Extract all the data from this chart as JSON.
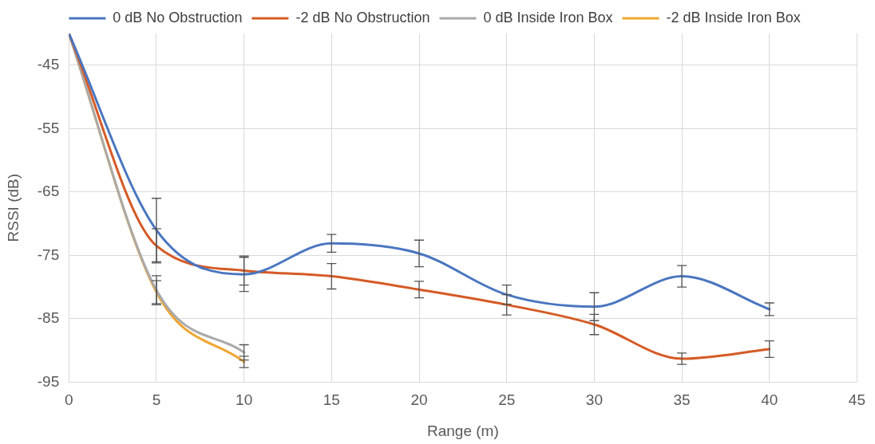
{
  "chart_data": {
    "type": "line",
    "xlabel": "Range (m)",
    "ylabel": "RSSI (dB)",
    "xlim": [
      0,
      45
    ],
    "xticks": [
      0,
      5,
      10,
      15,
      20,
      25,
      30,
      35,
      40,
      45
    ],
    "ylim": [
      -95,
      -40
    ],
    "yticks": [
      -95,
      -85,
      -75,
      -65,
      -55,
      -45
    ],
    "grid": true,
    "legend": "top",
    "marker": "none",
    "series": [
      {
        "name": "0 dB No Obstruction",
        "color": "#4a76c0",
        "x": [
          0,
          5,
          10,
          15,
          20,
          25,
          30,
          35,
          40
        ],
        "values": [
          -40,
          -71,
          -78,
          -73.1,
          -74.7,
          -81.2,
          -83.1,
          -78.3,
          -83.5
        ],
        "errors": [
          null,
          5,
          2.7,
          1.4,
          2.1,
          1.5,
          2.2,
          1.7,
          1
        ]
      },
      {
        "name": "-2 dB No Obstruction",
        "color": "#d55a25",
        "x": [
          0,
          5,
          10,
          15,
          20,
          25,
          30,
          35,
          40
        ],
        "values": [
          -40,
          -73.5,
          -77.4,
          -78.3,
          -80.4,
          -82.8,
          -85.9,
          -91.3,
          -89.8
        ],
        "errors": [
          null,
          2.7,
          2.3,
          2,
          1.3,
          1.6,
          1.6,
          0.9,
          1.3
        ]
      },
      {
        "name": "0 dB Inside Iron Box",
        "color": "#a9a9a9",
        "x": [
          0,
          5,
          10
        ],
        "values": [
          -40,
          -80.5,
          -90.3
        ],
        "errors": [
          null,
          2.3,
          1.2
        ]
      },
      {
        "name": "-2 dB Inside Iron Box",
        "color": "#f0a531",
        "x": [
          0,
          5,
          10
        ],
        "values": [
          -40,
          -80.8,
          -91.8
        ],
        "errors": [
          null,
          1.8,
          0.9
        ]
      }
    ]
  }
}
